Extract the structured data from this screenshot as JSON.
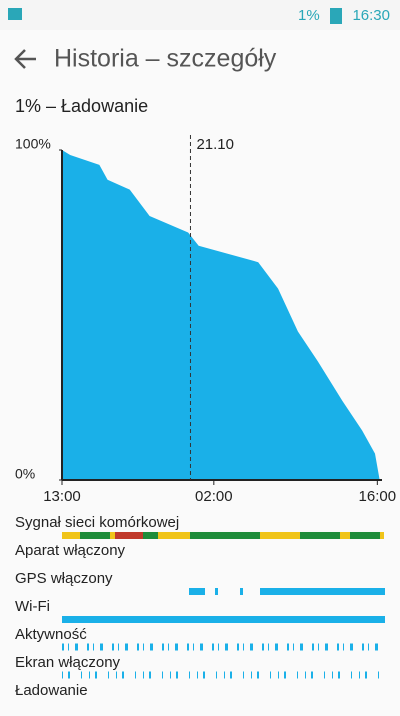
{
  "status_bar": {
    "battery": "1%",
    "time": "16:30"
  },
  "header": {
    "title": "Historia – szczegóły"
  },
  "chart_data": {
    "type": "area",
    "title": "1% – Ładowanie",
    "x": [
      0,
      0.7,
      3.2,
      3.9,
      5.8,
      7.5,
      10.8,
      11.7,
      16.8,
      18.5,
      20.2,
      21.9,
      24,
      25.7,
      26.8,
      27.2
    ],
    "values": [
      100,
      98.5,
      95.5,
      91,
      88,
      80,
      75,
      71,
      66,
      58,
      45,
      36,
      24,
      15,
      8,
      0
    ],
    "color": "#1ab0e8",
    "xlim": [
      0,
      27.4
    ],
    "xticks": [
      {
        "value": 0,
        "label": "13:00"
      },
      {
        "value": 13,
        "label": "02:00"
      },
      {
        "value": 27,
        "label": "16:00"
      }
    ],
    "ylim": [
      0,
      100
    ],
    "yticks": [
      {
        "value": 0,
        "label": "0%"
      },
      {
        "value": 100,
        "label": "100%"
      }
    ],
    "marker": {
      "value": 11,
      "label": "21.10"
    }
  },
  "timeline": {
    "rows": [
      "Sygnał sieci komórkowej",
      "Aparat włączony",
      "GPS włączony",
      "Wi-Fi",
      "Aktywność",
      "Ekran włączony",
      "Ładowanie"
    ]
  }
}
